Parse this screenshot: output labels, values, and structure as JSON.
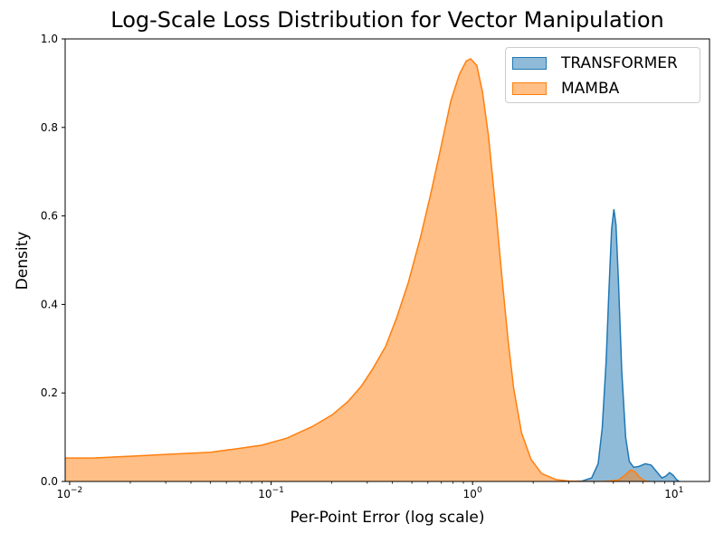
{
  "chart_data": {
    "type": "area",
    "title": "Log-Scale Loss Distribution for Vector Manipulation",
    "xlabel": "Per-Point Error (log scale)",
    "ylabel": "Density",
    "xscale": "log",
    "xlim": [
      0.0095,
      15
    ],
    "ylim": [
      0,
      1.0
    ],
    "xticks": [
      {
        "value": 0.01,
        "base": "10",
        "exp": "−2"
      },
      {
        "value": 0.1,
        "base": "10",
        "exp": "−1"
      },
      {
        "value": 1,
        "base": "10",
        "exp": "0"
      },
      {
        "value": 10,
        "base": "10",
        "exp": "1"
      }
    ],
    "yticks": [
      {
        "value": 0.0,
        "label": "0.0"
      },
      {
        "value": 0.2,
        "label": "0.2"
      },
      {
        "value": 0.4,
        "label": "0.4"
      },
      {
        "value": 0.6,
        "label": "0.6"
      },
      {
        "value": 0.8,
        "label": "0.8"
      },
      {
        "value": 1.0,
        "label": "1.0"
      }
    ],
    "grid": false,
    "legend_position": "top-right",
    "series": [
      {
        "name": "TRANSFORMER",
        "fill": "#1f77b4",
        "fill_opacity": 0.5,
        "stroke": "#1f77b4",
        "points": [
          [
            3.0,
            0.0
          ],
          [
            3.5,
            0.001
          ],
          [
            3.9,
            0.008
          ],
          [
            4.2,
            0.04
          ],
          [
            4.4,
            0.12
          ],
          [
            4.6,
            0.27
          ],
          [
            4.75,
            0.43
          ],
          [
            4.9,
            0.57
          ],
          [
            5.03,
            0.615
          ],
          [
            5.15,
            0.58
          ],
          [
            5.3,
            0.45
          ],
          [
            5.5,
            0.25
          ],
          [
            5.75,
            0.1
          ],
          [
            6.0,
            0.045
          ],
          [
            6.3,
            0.032
          ],
          [
            6.7,
            0.034
          ],
          [
            7.2,
            0.04
          ],
          [
            7.7,
            0.037
          ],
          [
            8.2,
            0.022
          ],
          [
            8.7,
            0.008
          ],
          [
            9.1,
            0.012
          ],
          [
            9.5,
            0.02
          ],
          [
            9.9,
            0.014
          ],
          [
            10.3,
            0.004
          ],
          [
            10.6,
            0.0
          ]
        ]
      },
      {
        "name": "MAMBA",
        "fill": "#ff7f0e",
        "fill_opacity": 0.5,
        "stroke": "#ff7f0e",
        "points": [
          [
            0.0095,
            0.053
          ],
          [
            0.013,
            0.053
          ],
          [
            0.02,
            0.057
          ],
          [
            0.03,
            0.061
          ],
          [
            0.05,
            0.066
          ],
          [
            0.07,
            0.075
          ],
          [
            0.09,
            0.082
          ],
          [
            0.12,
            0.098
          ],
          [
            0.16,
            0.124
          ],
          [
            0.2,
            0.15
          ],
          [
            0.24,
            0.18
          ],
          [
            0.28,
            0.215
          ],
          [
            0.32,
            0.255
          ],
          [
            0.37,
            0.305
          ],
          [
            0.42,
            0.37
          ],
          [
            0.48,
            0.45
          ],
          [
            0.55,
            0.55
          ],
          [
            0.62,
            0.65
          ],
          [
            0.7,
            0.76
          ],
          [
            0.78,
            0.86
          ],
          [
            0.86,
            0.92
          ],
          [
            0.93,
            0.95
          ],
          [
            0.98,
            0.955
          ],
          [
            1.05,
            0.94
          ],
          [
            1.12,
            0.88
          ],
          [
            1.2,
            0.78
          ],
          [
            1.3,
            0.62
          ],
          [
            1.4,
            0.46
          ],
          [
            1.5,
            0.32
          ],
          [
            1.6,
            0.21
          ],
          [
            1.75,
            0.11
          ],
          [
            1.95,
            0.05
          ],
          [
            2.2,
            0.018
          ],
          [
            2.6,
            0.004
          ],
          [
            3.0,
            0.001
          ],
          [
            3.6,
            0.0
          ],
          [
            4.5,
            0.0
          ],
          [
            5.3,
            0.003
          ],
          [
            5.7,
            0.014
          ],
          [
            6.1,
            0.026
          ],
          [
            6.4,
            0.022
          ],
          [
            6.8,
            0.008
          ],
          [
            7.2,
            0.001
          ],
          [
            7.6,
            0.0
          ]
        ]
      }
    ]
  }
}
